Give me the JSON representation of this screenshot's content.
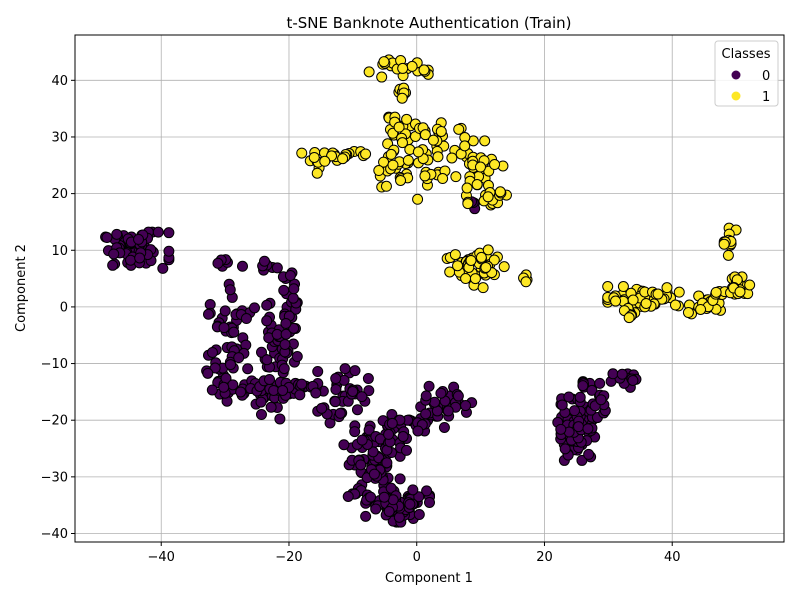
{
  "chart_data": {
    "type": "scatter",
    "title": "t-SNE Banknote Authentication (Train)",
    "xlabel": "Component 1",
    "ylabel": "Component 2",
    "xlim": [
      -53.5,
      57.5
    ],
    "ylim": [
      -41.5,
      48
    ],
    "xticks": [
      -40,
      -20,
      0,
      20,
      40
    ],
    "yticks": [
      -40,
      -30,
      -20,
      -10,
      0,
      10,
      20,
      30,
      40
    ],
    "grid": true,
    "legend": {
      "title": "Classes",
      "placement": "top-right",
      "entries": [
        "0",
        "1"
      ]
    },
    "colors": {
      "0": "#440154",
      "1": "#fde725",
      "edge": "#000000"
    },
    "clusters": [
      {
        "class": "0",
        "cx": -44,
        "cy": 10,
        "sx": 2.6,
        "sy": 1.6,
        "n": 70
      },
      {
        "class": "0",
        "cx": -29,
        "cy": -6,
        "sx": 1.8,
        "sy": 5,
        "n": 45
      },
      {
        "class": "0",
        "cx": -31,
        "cy": -11,
        "sx": 1,
        "sy": 1.5,
        "n": 12
      },
      {
        "class": "0",
        "cx": -28,
        "cy": -14.5,
        "sx": 2,
        "sy": 1.2,
        "n": 15
      },
      {
        "class": "0",
        "cx": -29,
        "cy": 8,
        "sx": 1.2,
        "sy": 0.6,
        "n": 6
      },
      {
        "class": "0",
        "cx": -24,
        "cy": -16,
        "sx": 1.5,
        "sy": 1.5,
        "n": 14
      },
      {
        "class": "0",
        "cx": -23,
        "cy": 7.5,
        "sx": 1,
        "sy": 0.5,
        "n": 6
      },
      {
        "class": "0",
        "cx": -21.5,
        "cy": -7,
        "sx": 1.4,
        "sy": 6.5,
        "n": 60
      },
      {
        "class": "0",
        "cx": -20.5,
        "cy": 2,
        "sx": 0.8,
        "sy": 3,
        "n": 14
      },
      {
        "class": "0",
        "cx": -17.5,
        "cy": -14.5,
        "sx": 2.5,
        "sy": 0.7,
        "n": 20
      },
      {
        "class": "0",
        "cx": -11.5,
        "cy": -15.5,
        "sx": 2,
        "sy": 2.5,
        "n": 35
      },
      {
        "class": "0",
        "cx": -7,
        "cy": -27,
        "sx": 2.2,
        "sy": 3,
        "n": 70
      },
      {
        "class": "0",
        "cx": -4,
        "cy": -23,
        "sx": 1.2,
        "sy": 2,
        "n": 20
      },
      {
        "class": "0",
        "cx": -3,
        "cy": -35,
        "sx": 2.5,
        "sy": 1.5,
        "n": 70
      },
      {
        "class": "0",
        "cx": -10,
        "cy": -32.8,
        "sx": 1,
        "sy": 0.5,
        "n": 6
      },
      {
        "class": "0",
        "cx": -7.5,
        "cy": -33.5,
        "sx": 0.8,
        "sy": 0.6,
        "n": 5
      },
      {
        "class": "0",
        "cx": -2.5,
        "cy": -20,
        "sx": 1.5,
        "sy": 0.5,
        "n": 8
      },
      {
        "class": "0",
        "cx": 2,
        "cy": -19.5,
        "sx": 1.5,
        "sy": 1.2,
        "n": 20
      },
      {
        "class": "0",
        "cx": 5,
        "cy": -17,
        "sx": 1.8,
        "sy": 1.5,
        "n": 20
      },
      {
        "class": "0",
        "cx": 25,
        "cy": -21.5,
        "sx": 1.6,
        "sy": 2.8,
        "n": 80
      },
      {
        "class": "0",
        "cx": 28,
        "cy": -17.5,
        "sx": 1.2,
        "sy": 2,
        "n": 18
      },
      {
        "class": "0",
        "cx": 32.5,
        "cy": -13,
        "sx": 1.2,
        "sy": 0.6,
        "n": 12
      },
      {
        "class": "0",
        "cx": 26,
        "cy": -13.5,
        "sx": 0.6,
        "sy": 0.4,
        "n": 4
      },
      {
        "class": "0",
        "cx": 9,
        "cy": 18,
        "sx": 0.4,
        "sy": 0.8,
        "n": 4
      },
      {
        "class": "1",
        "cx": -3,
        "cy": 42,
        "sx": 2.4,
        "sy": 0.8,
        "n": 25
      },
      {
        "class": "1",
        "cx": -2.5,
        "cy": 38,
        "sx": 0.6,
        "sy": 0.6,
        "n": 8
      },
      {
        "class": "1",
        "cx": -3,
        "cy": 30.5,
        "sx": 1.4,
        "sy": 1.5,
        "n": 22
      },
      {
        "class": "1",
        "cx": -2.5,
        "cy": 24,
        "sx": 2.5,
        "sy": 2.5,
        "n": 30
      },
      {
        "class": "1",
        "cx": -11,
        "cy": 27,
        "sx": 3.5,
        "sy": 0.6,
        "n": 20
      },
      {
        "class": "1",
        "cx": -15.5,
        "cy": 25.2,
        "sx": 0.6,
        "sy": 0.8,
        "n": 6
      },
      {
        "class": "1",
        "cx": 4,
        "cy": 29.5,
        "sx": 2,
        "sy": 1.5,
        "n": 20
      },
      {
        "class": "1",
        "cx": 2.5,
        "cy": 23.3,
        "sx": 1.2,
        "sy": 0.4,
        "n": 8
      },
      {
        "class": "1",
        "cx": 9.5,
        "cy": 24,
        "sx": 2,
        "sy": 3,
        "n": 35
      },
      {
        "class": "1",
        "cx": 11,
        "cy": 20,
        "sx": 1.5,
        "sy": 1,
        "n": 10
      },
      {
        "class": "1",
        "cx": 13.5,
        "cy": 20,
        "sx": 0.5,
        "sy": 0.3,
        "n": 4
      },
      {
        "class": "1",
        "cx": 9.5,
        "cy": 7,
        "sx": 2.5,
        "sy": 1.8,
        "n": 50
      },
      {
        "class": "1",
        "cx": 17,
        "cy": 5,
        "sx": 0.3,
        "sy": 0.5,
        "n": 4
      },
      {
        "class": "1",
        "cx": 35.5,
        "cy": 1.8,
        "sx": 2.8,
        "sy": 0.9,
        "n": 55
      },
      {
        "class": "1",
        "cx": 33.5,
        "cy": -1.5,
        "sx": 0.6,
        "sy": 0.8,
        "n": 8
      },
      {
        "class": "1",
        "cx": 45,
        "cy": 0.5,
        "sx": 1.5,
        "sy": 1,
        "n": 25
      },
      {
        "class": "1",
        "cx": 48,
        "cy": 2.5,
        "sx": 0.6,
        "sy": 0.3,
        "n": 6
      },
      {
        "class": "1",
        "cx": 50.5,
        "cy": 3.5,
        "sx": 1.3,
        "sy": 0.9,
        "n": 22
      },
      {
        "class": "1",
        "cx": 49,
        "cy": 11.5,
        "sx": 0.5,
        "sy": 1.2,
        "n": 12
      }
    ]
  }
}
